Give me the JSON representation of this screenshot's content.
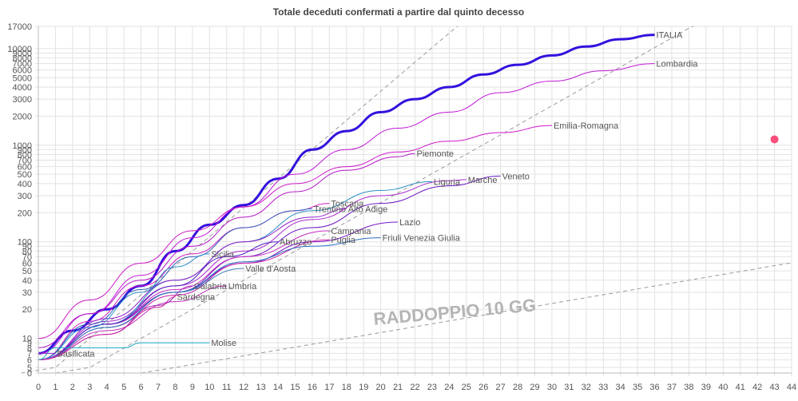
{
  "chart_data": {
    "type": "line",
    "title": "Totale deceduti confermati a partire dal quinto decesso",
    "xlabel": "",
    "ylabel": "",
    "x_range": [
      0,
      44
    ],
    "x_ticks": [
      0,
      1,
      2,
      3,
      4,
      5,
      6,
      7,
      8,
      9,
      10,
      11,
      12,
      13,
      14,
      15,
      16,
      17,
      18,
      19,
      20,
      21,
      22,
      23,
      24,
      25,
      26,
      27,
      28,
      29,
      30,
      31,
      32,
      33,
      34,
      35,
      36,
      37,
      38,
      39,
      40,
      41,
      42,
      43,
      44
    ],
    "y_scale": "log",
    "y_range": [
      0,
      17000
    ],
    "y_tick_labels": [
      "0",
      "5",
      "6",
      "7",
      "8",
      "9",
      "10",
      "20",
      "30",
      "40",
      "50",
      "60",
      "70",
      "80",
      "90",
      "100",
      "200",
      "300",
      "400",
      "500",
      "600",
      "700",
      "800",
      "900",
      "1000",
      "2000",
      "3000",
      "4000",
      "5000",
      "6000",
      "7000",
      "8000",
      "9000",
      "10000",
      "17000"
    ],
    "grid": true,
    "legend": "none",
    "annotation": "RADDOPPIO 10 GG",
    "doubling_reference_lines": [
      {
        "doubling_days": 2,
        "start": [
          1,
          5
        ]
      },
      {
        "doubling_days": 3,
        "start": [
          3,
          5
        ]
      },
      {
        "doubling_days": 10,
        "start": [
          8,
          5
        ]
      }
    ],
    "highlight_point": {
      "x": 43,
      "y": 1150,
      "color": "#ff4f7b"
    },
    "series": [
      {
        "name": "ITALIA",
        "color": "#3311dd",
        "width": 3,
        "x": [
          0,
          2,
          4,
          6,
          8,
          10,
          12,
          14,
          16,
          18,
          20,
          22,
          24,
          26,
          28,
          30,
          32,
          34,
          36
        ],
        "y": [
          7,
          12,
          20,
          35,
          80,
          150,
          240,
          450,
          900,
          1400,
          2200,
          3000,
          4000,
          5400,
          6800,
          8500,
          10500,
          12500,
          13900
        ]
      },
      {
        "name": "Lombardia",
        "color": "#c01ad6",
        "width": 1,
        "x": [
          0,
          3,
          6,
          9,
          12,
          15,
          18,
          21,
          24,
          27,
          30,
          33,
          36
        ],
        "y": [
          7,
          18,
          45,
          110,
          230,
          500,
          900,
          1500,
          2200,
          3500,
          4600,
          5900,
          7000
        ]
      },
      {
        "name": "Emilia-Romagna",
        "color": "#cc18c8",
        "width": 1,
        "x": [
          0,
          3,
          6,
          9,
          12,
          15,
          18,
          21,
          24,
          27,
          30
        ],
        "y": [
          10,
          25,
          60,
          130,
          230,
          400,
          600,
          850,
          1100,
          1350,
          1600
        ]
      },
      {
        "name": "Piemonte",
        "color": "#b415c8",
        "width": 1,
        "x": [
          0,
          3,
          6,
          9,
          12,
          15,
          18,
          21,
          22
        ],
        "y": [
          8,
          18,
          40,
          90,
          180,
          330,
          550,
          760,
          820
        ]
      },
      {
        "name": "Veneto",
        "color": "#6a16c2",
        "width": 1,
        "x": [
          0,
          4,
          8,
          12,
          16,
          20,
          24,
          27
        ],
        "y": [
          6,
          14,
          30,
          70,
          140,
          250,
          380,
          480
        ]
      },
      {
        "name": "Marche",
        "color": "#aa2ad0",
        "width": 1,
        "x": [
          0,
          4,
          8,
          12,
          16,
          20,
          24,
          25
        ],
        "y": [
          6,
          15,
          35,
          80,
          170,
          300,
          430,
          440
        ]
      },
      {
        "name": "Liguria",
        "color": "#2a8fc2",
        "width": 1,
        "x": [
          0,
          4,
          8,
          12,
          16,
          20,
          23
        ],
        "y": [
          6,
          14,
          40,
          100,
          210,
          340,
          420
        ]
      },
      {
        "name": "Toscana",
        "color": "#d020c0",
        "width": 1,
        "x": [
          0,
          3,
          6,
          9,
          12,
          15,
          17
        ],
        "y": [
          6,
          15,
          35,
          75,
          140,
          210,
          250
        ]
      },
      {
        "name": "Trentino",
        "color": "#3060b8",
        "width": 1,
        "x": [
          0,
          3,
          6,
          9,
          12,
          15,
          16
        ],
        "y": [
          6,
          14,
          32,
          70,
          140,
          210,
          220
        ]
      },
      {
        "name": "Alto Adige",
        "color": "#9020c8",
        "width": 1,
        "x": [
          0,
          4,
          8,
          12,
          16,
          18
        ],
        "y": [
          6,
          16,
          40,
          100,
          180,
          220
        ]
      },
      {
        "name": "Lazio",
        "color": "#7a18c8",
        "width": 1,
        "x": [
          0,
          4,
          8,
          12,
          16,
          21
        ],
        "y": [
          6,
          14,
          30,
          60,
          100,
          160
        ]
      },
      {
        "name": "Campania",
        "color": "#c82ac0",
        "width": 1,
        "x": [
          0,
          4,
          8,
          12,
          17
        ],
        "y": [
          6,
          14,
          32,
          70,
          130
        ]
      },
      {
        "name": "Puglia",
        "color": "#d025a8",
        "width": 1,
        "x": [
          0,
          4,
          8,
          12,
          17
        ],
        "y": [
          6,
          13,
          28,
          60,
          105
        ]
      },
      {
        "name": "Friuli Venezia Giulia",
        "color": "#2a6dc0",
        "width": 1,
        "x": [
          0,
          4,
          8,
          12,
          16,
          20
        ],
        "y": [
          6,
          13,
          30,
          62,
          90,
          110
        ]
      },
      {
        "name": "Abruzzo",
        "color": "#5020c0",
        "width": 1,
        "x": [
          0,
          4,
          8,
          11,
          14
        ],
        "y": [
          6,
          14,
          35,
          70,
          100
        ]
      },
      {
        "name": "Sicilia",
        "color": "#2a90c8",
        "width": 1,
        "x": [
          0,
          3,
          6,
          8,
          10
        ],
        "y": [
          6,
          13,
          30,
          55,
          75
        ]
      },
      {
        "name": "Valle d'Aosta",
        "color": "#3a7fb8",
        "width": 1,
        "x": [
          0,
          4,
          8,
          12
        ],
        "y": [
          6,
          13,
          30,
          53
        ]
      },
      {
        "name": "Umbria",
        "color": "#c030b8",
        "width": 1,
        "x": [
          0,
          4,
          8,
          11
        ],
        "y": [
          6,
          12,
          24,
          35
        ]
      },
      {
        "name": "Calabria",
        "color": "#a02ab8",
        "width": 1,
        "x": [
          0,
          4,
          7,
          9
        ],
        "y": [
          6,
          11,
          22,
          35
        ]
      },
      {
        "name": "Sardegna",
        "color": "#d02aa0",
        "width": 1,
        "x": [
          0,
          4,
          7,
          8
        ],
        "y": [
          6,
          11,
          21,
          27
        ]
      },
      {
        "name": "Molise",
        "color": "#1aaac0",
        "width": 1,
        "x": [
          0,
          1,
          2,
          3,
          4,
          5,
          6,
          7,
          8,
          9,
          10
        ],
        "y": [
          6,
          8,
          8,
          8,
          8,
          8,
          9,
          9,
          9,
          9,
          9
        ]
      },
      {
        "name": "Basilicata",
        "color": "#8a2ac8",
        "width": 1,
        "x": [
          0,
          1
        ],
        "y": [
          7,
          7
        ]
      }
    ]
  }
}
